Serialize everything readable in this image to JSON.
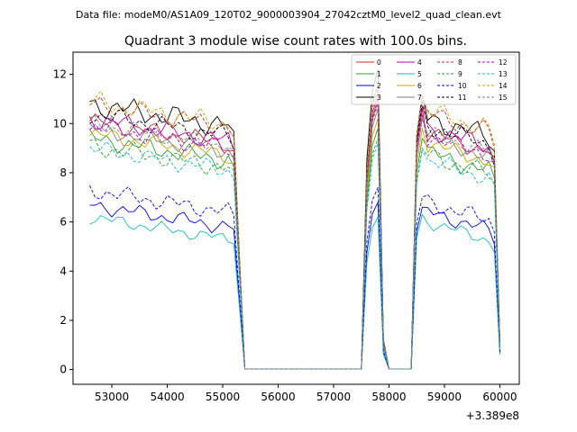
{
  "chart_data": {
    "type": "line",
    "suptitle": "Data file: modeM0/AS1A09_120T02_9000003904_27042cztM0_level2_quad_clean.evt",
    "title": "Quadrant 3 module wise count rates with 100.0s bins.",
    "xlabel": "",
    "ylabel": "",
    "x_offset_label": "+3.389e8",
    "xlim": [
      52300,
      60350
    ],
    "ylim": [
      -0.6,
      12.9
    ],
    "xticks": [
      53000,
      54000,
      55000,
      56000,
      57000,
      58000,
      59000,
      60000
    ],
    "xtick_labels": [
      "53000",
      "54000",
      "55000",
      "56000",
      "57000",
      "58000",
      "59000",
      "60000"
    ],
    "yticks": [
      0,
      2,
      4,
      6,
      8,
      10,
      12
    ],
    "ytick_labels": [
      "0",
      "2",
      "4",
      "6",
      "8",
      "10",
      "12"
    ],
    "legend_position": "upper-right",
    "x": [
      52600,
      52700,
      52800,
      52900,
      53000,
      53100,
      53200,
      53300,
      53400,
      53500,
      53600,
      53700,
      53800,
      53900,
      54000,
      54100,
      54200,
      54300,
      54400,
      54500,
      54600,
      54700,
      54800,
      54900,
      55000,
      55100,
      55200,
      55300,
      55400,
      55500,
      55600,
      55700,
      55800,
      55900,
      56000,
      56100,
      56200,
      56300,
      56400,
      56500,
      56600,
      56700,
      56800,
      56900,
      57000,
      57100,
      57200,
      57300,
      57400,
      57500,
      57600,
      57700,
      57800,
      57900,
      58000,
      58100,
      58200,
      58300,
      58400,
      58500,
      58600,
      58700,
      58800,
      58900,
      59000,
      59100,
      59200,
      59300,
      59400,
      59500,
      59600,
      59700,
      59800,
      59900,
      60000
    ],
    "series": [
      {
        "name": "0",
        "color": "#d62728",
        "dashed": false,
        "base1": 9.6,
        "base2": 9.2,
        "amp": 0.4,
        "peak1": 11.0,
        "peak2": 10.6,
        "end": 1.0
      },
      {
        "name": "1",
        "color": "#2ca02c",
        "dashed": false,
        "base1": 8.9,
        "base2": 8.4,
        "amp": 0.45,
        "peak1": 9.8,
        "peak2": 9.4,
        "end": 0.9
      },
      {
        "name": "2",
        "color": "#0000ee",
        "dashed": false,
        "base1": 6.2,
        "base2": 6.0,
        "amp": 0.35,
        "peak1": 6.8,
        "peak2": 6.6,
        "end": 0.7
      },
      {
        "name": "3",
        "color": "#000000",
        "dashed": false,
        "base1": 10.3,
        "base2": 9.8,
        "amp": 0.55,
        "peak1": 12.2,
        "peak2": 11.2,
        "end": 1.1
      },
      {
        "name": "4",
        "color": "#bb00bb",
        "dashed": false,
        "base1": 9.7,
        "base2": 9.4,
        "amp": 0.45,
        "peak1": 11.2,
        "peak2": 10.7,
        "end": 1.0
      },
      {
        "name": "5",
        "color": "#17becf",
        "dashed": false,
        "base1": 5.7,
        "base2": 5.6,
        "amp": 0.3,
        "peak1": 6.2,
        "peak2": 6.3,
        "end": 0.6
      },
      {
        "name": "6",
        "color": "#c8a800",
        "dashed": false,
        "base1": 9.1,
        "base2": 8.8,
        "amp": 0.4,
        "peak1": 10.2,
        "peak2": 9.8,
        "end": 0.9
      },
      {
        "name": "7",
        "color": "#7f7f7f",
        "dashed": false,
        "base1": 9.3,
        "base2": 9.0,
        "amp": 0.4,
        "peak1": 10.6,
        "peak2": 10.2,
        "end": 1.0
      },
      {
        "name": "8",
        "color": "#d62728",
        "dashed": true,
        "base1": 10.3,
        "base2": 10.0,
        "amp": 0.45,
        "peak1": 11.4,
        "peak2": 11.0,
        "end": 1.1
      },
      {
        "name": "9",
        "color": "#2ca02c",
        "dashed": true,
        "base1": 8.6,
        "base2": 8.3,
        "amp": 0.45,
        "peak1": 9.4,
        "peak2": 9.0,
        "end": 0.9
      },
      {
        "name": "10",
        "color": "#0000ee",
        "dashed": true,
        "base1": 6.8,
        "base2": 6.4,
        "amp": 0.4,
        "peak1": 7.4,
        "peak2": 7.0,
        "end": 0.7
      },
      {
        "name": "11",
        "color": "#000000",
        "dashed": true,
        "base1": 9.9,
        "base2": 9.5,
        "amp": 0.45,
        "peak1": 11.6,
        "peak2": 10.9,
        "end": 1.0
      },
      {
        "name": "12",
        "color": "#bb00bb",
        "dashed": true,
        "base1": 9.4,
        "base2": 9.1,
        "amp": 0.45,
        "peak1": 10.9,
        "peak2": 10.4,
        "end": 1.0
      },
      {
        "name": "13",
        "color": "#17becf",
        "dashed": true,
        "base1": 8.5,
        "base2": 8.1,
        "amp": 0.4,
        "peak1": 9.2,
        "peak2": 8.9,
        "end": 0.8
      },
      {
        "name": "14",
        "color": "#c8a800",
        "dashed": true,
        "base1": 10.4,
        "base2": 10.1,
        "amp": 0.5,
        "peak1": 11.5,
        "peak2": 11.2,
        "end": 1.1
      },
      {
        "name": "15",
        "color": "#7f7f7f",
        "dashed": true,
        "base1": 9.5,
        "base2": 9.2,
        "amp": 0.4,
        "peak1": 10.8,
        "peak2": 10.3,
        "end": 1.0
      }
    ]
  }
}
